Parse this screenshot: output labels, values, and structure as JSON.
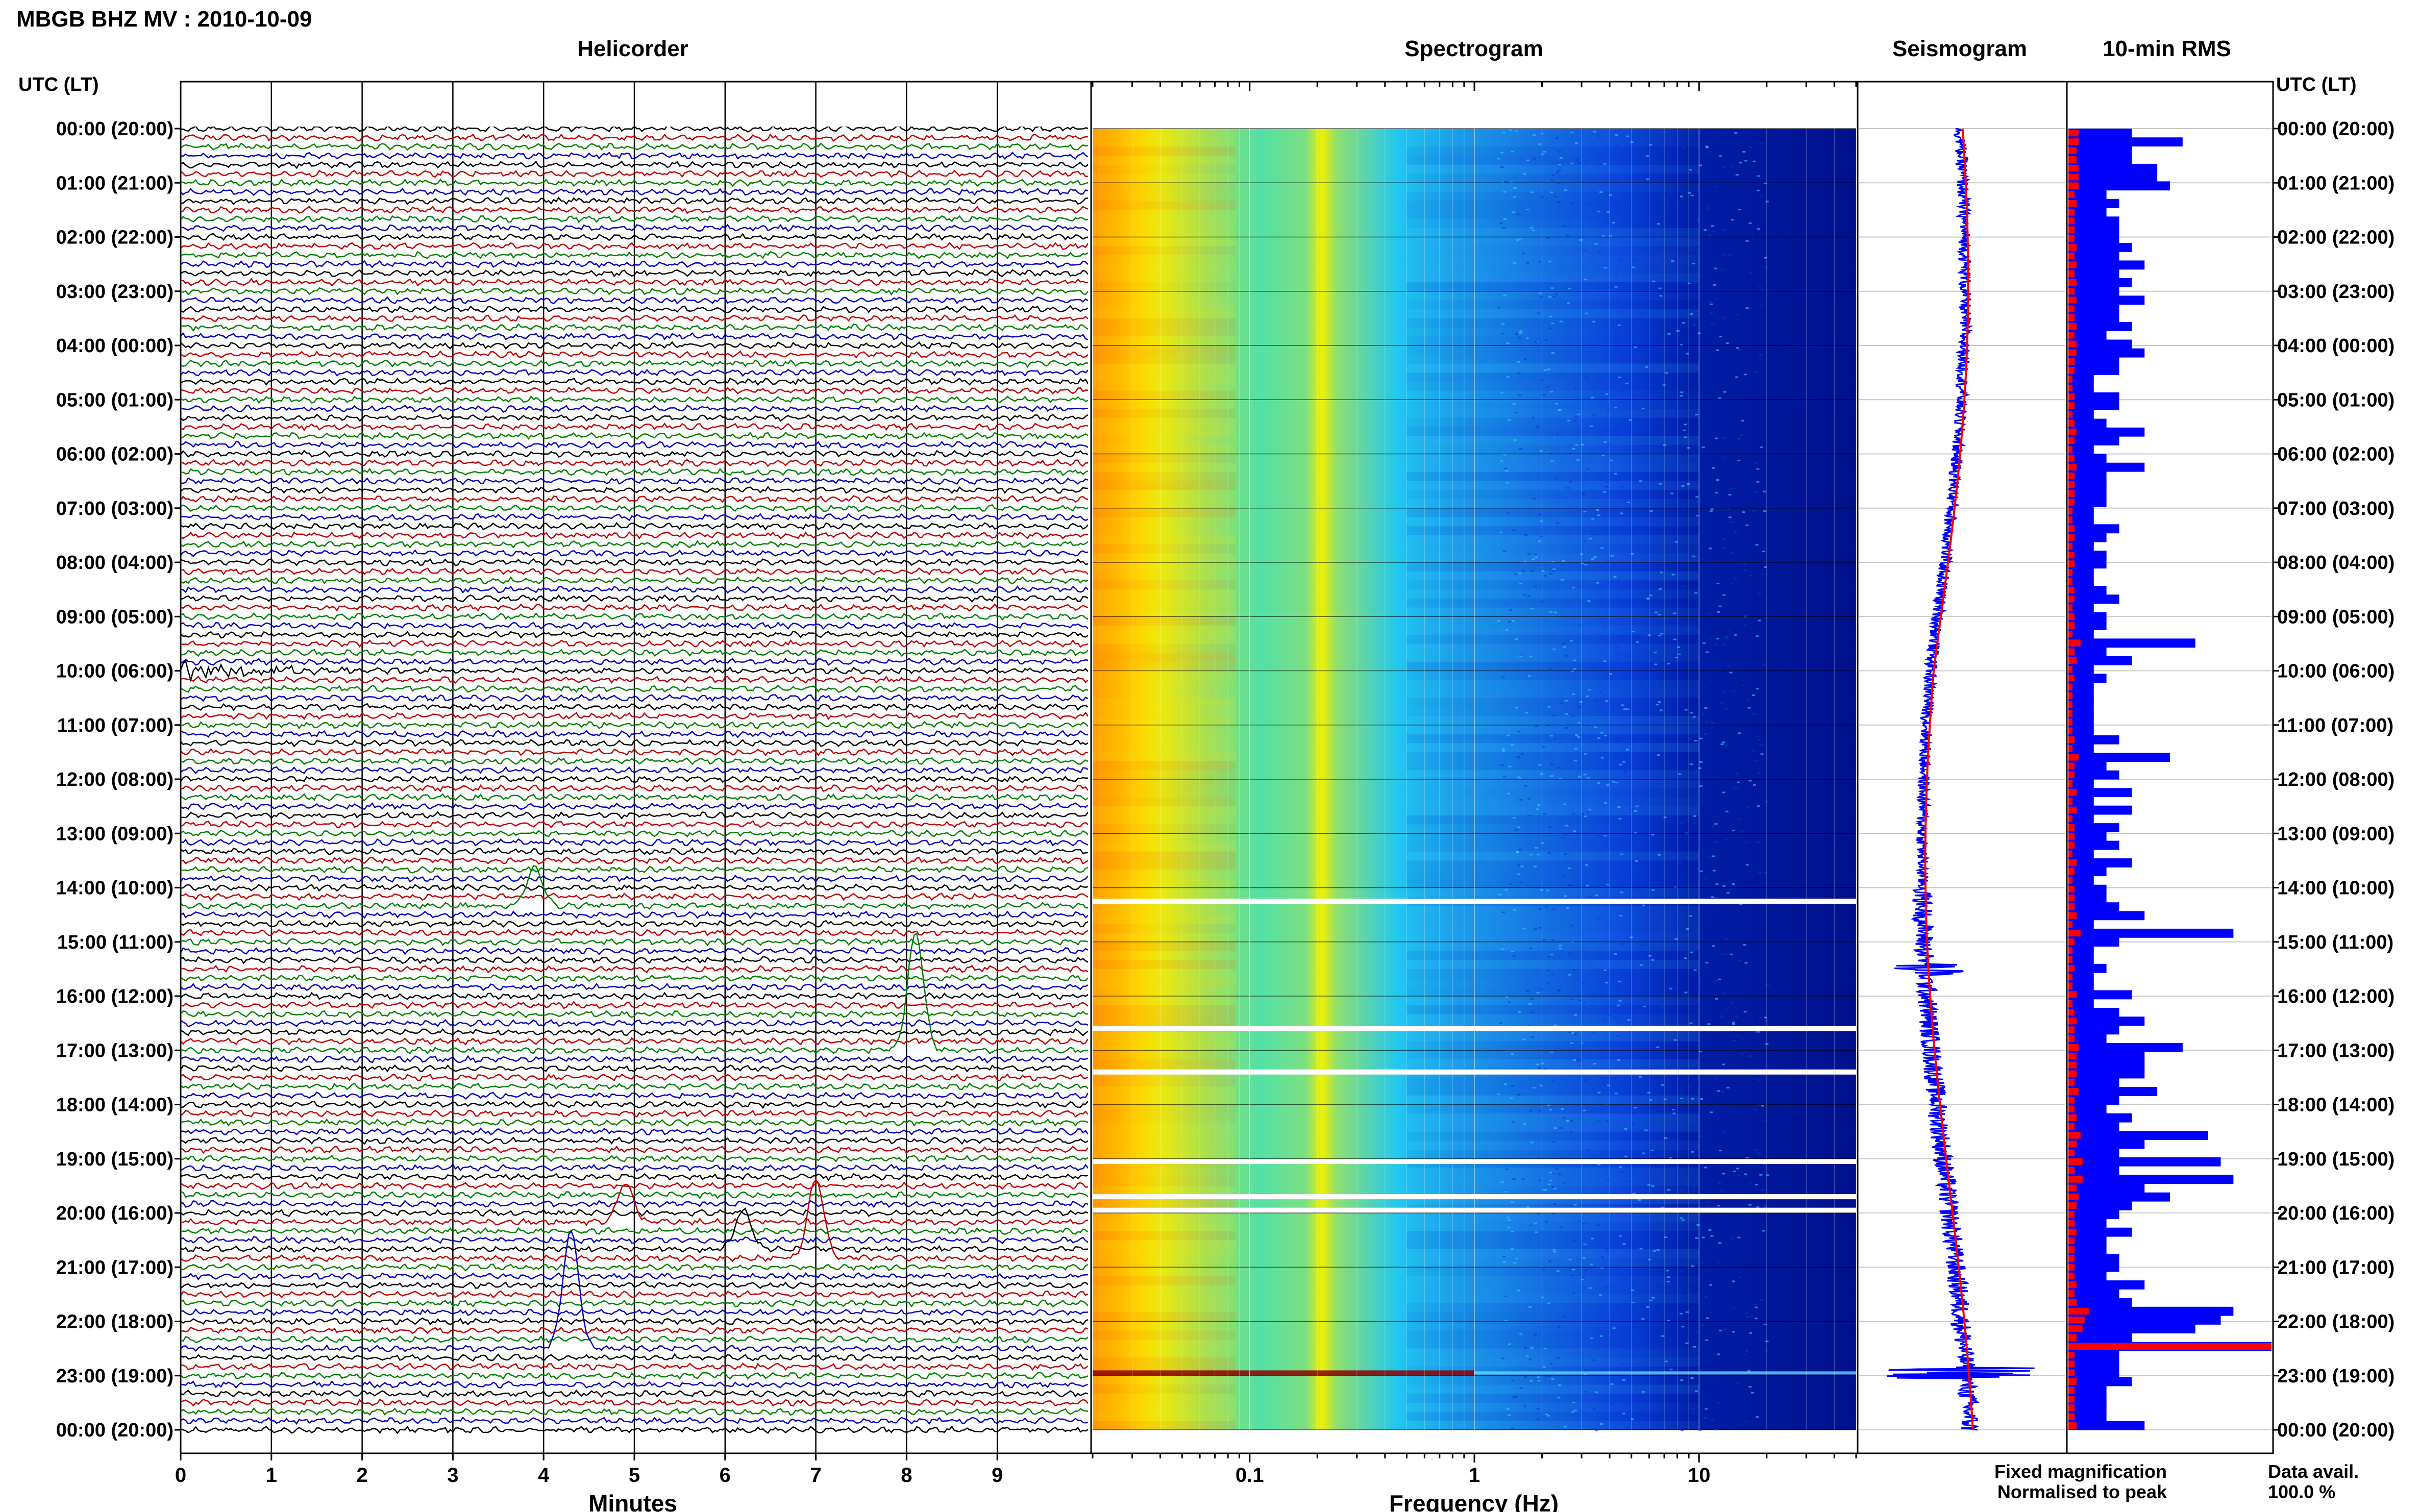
{
  "page_title": "MBGB BHZ MV : 2010-10-09",
  "panels": {
    "helicorder": "Helicorder",
    "spectrogram": "Spectrogram",
    "seismogram": "Seismogram",
    "rms": "10-min RMS"
  },
  "time_axis_header": "UTC (LT)",
  "time_labels": [
    "00:00 (20:00)",
    "01:00 (21:00)",
    "02:00 (22:00)",
    "03:00 (23:00)",
    "04:00 (00:00)",
    "05:00 (01:00)",
    "06:00 (02:00)",
    "07:00 (03:00)",
    "08:00 (04:00)",
    "09:00 (05:00)",
    "10:00 (06:00)",
    "11:00 (07:00)",
    "12:00 (08:00)",
    "13:00 (09:00)",
    "14:00 (10:00)",
    "15:00 (11:00)",
    "16:00 (12:00)",
    "17:00 (13:00)",
    "18:00 (14:00)",
    "19:00 (15:00)",
    "20:00 (16:00)",
    "21:00 (17:00)",
    "22:00 (18:00)",
    "23:00 (19:00)",
    "00:00 (20:00)"
  ],
  "legend": {
    "fixed": "Fixed magnification",
    "normalised": "Normalised to peak",
    "fixed_color": "#0000ff",
    "normalised_color": "#ff0000"
  },
  "data_avail_label": "Data avail.",
  "data_avail_value": "100.0 %",
  "chart_data": [
    {
      "type": "line",
      "name": "helicorder",
      "title": "Helicorder",
      "xlabel": "Minutes",
      "xticks": [
        0,
        1,
        2,
        3,
        4,
        5,
        6,
        7,
        8,
        9
      ],
      "xlim": [
        0,
        10
      ],
      "trace_colors": [
        "#000000",
        "#c00000",
        "#008000",
        "#0000c0"
      ],
      "events": [
        {
          "hour": 10.0,
          "minute": 0.0,
          "kind": "burst"
        },
        {
          "hour": 14.4,
          "minute": 3.9,
          "kind": "pulse"
        },
        {
          "hour": 17.0,
          "minute": 8.1,
          "kind": "pulse"
        },
        {
          "hour": 20.1,
          "minute": 4.9,
          "kind": "pulse"
        },
        {
          "hour": 20.6,
          "minute": 6.2,
          "kind": "pulse"
        },
        {
          "hour": 20.8,
          "minute": 7.0,
          "kind": "pulse"
        },
        {
          "hour": 22.5,
          "minute": 4.3,
          "kind": "pulse"
        }
      ]
    },
    {
      "type": "heatmap",
      "name": "spectrogram",
      "title": "Spectrogram",
      "xlabel": "Frequency (Hz)",
      "xscale": "log",
      "xlim": [
        0.02,
        50
      ],
      "xticks": [
        0.1,
        1,
        10
      ],
      "gap_hours": [
        14.25,
        16.6,
        17.4,
        19.05,
        19.7,
        19.95
      ],
      "hot_hour": 22.95
    },
    {
      "type": "line",
      "name": "seismogram",
      "title": "Seismogram",
      "xlim": [
        -1,
        1
      ]
    },
    {
      "type": "bar",
      "name": "rms",
      "title": "10-min RMS",
      "series": [
        {
          "name": "Fixed magnification",
          "color": "#0000ff",
          "values": [
            0.5,
            0.9,
            0.5,
            0.5,
            0.7,
            0.7,
            0.8,
            0.3,
            0.4,
            0.3,
            0.4,
            0.4,
            0.4,
            0.5,
            0.4,
            0.6,
            0.4,
            0.5,
            0.4,
            0.6,
            0.4,
            0.4,
            0.5,
            0.3,
            0.5,
            0.6,
            0.4,
            0.4,
            0.2,
            0.2,
            0.4,
            0.4,
            0.2,
            0.3,
            0.6,
            0.4,
            0.2,
            0.3,
            0.6,
            0.3,
            0.3,
            0.3,
            0.3,
            0.2,
            0.2,
            0.4,
            0.3,
            0.2,
            0.3,
            0.3,
            0.2,
            0.2,
            0.3,
            0.4,
            0.2,
            0.3,
            0.3,
            0.2,
            1.0,
            0.3,
            0.5,
            0.2,
            0.3,
            0.2,
            0.2,
            0.2,
            0.2,
            0.2,
            0.2,
            0.4,
            0.2,
            0.8,
            0.3,
            0.4,
            0.2,
            0.5,
            0.2,
            0.5,
            0.2,
            0.4,
            0.3,
            0.4,
            0.2,
            0.5,
            0.3,
            0.2,
            0.3,
            0.3,
            0.4,
            0.6,
            0.2,
            1.3,
            0.4,
            0.2,
            0.2,
            0.3,
            0.2,
            0.2,
            0.5,
            0.2,
            0.4,
            0.6,
            0.4,
            0.3,
            0.9,
            0.6,
            0.6,
            0.6,
            0.4,
            0.7,
            0.4,
            0.3,
            0.5,
            0.4,
            1.1,
            0.6,
            0.4,
            1.2,
            0.4,
            1.3,
            0.6,
            0.8,
            0.5,
            0.4,
            0.3,
            0.5,
            0.3,
            0.3,
            0.4,
            0.4,
            0.3,
            0.6,
            0.4,
            0.5,
            1.3,
            1.2,
            1.0,
            0.5,
            1.6,
            0.4,
            0.4,
            0.4,
            0.5,
            0.3,
            0.3,
            0.3,
            0.3,
            0.6
          ]
        },
        {
          "name": "Normalised to peak",
          "color": "#ff0000",
          "values": [
            0.05,
            0.05,
            0.04,
            0.04,
            0.05,
            0.05,
            0.05,
            0.03,
            0.04,
            0.03,
            0.03,
            0.03,
            0.03,
            0.04,
            0.03,
            0.04,
            0.03,
            0.04,
            0.03,
            0.04,
            0.03,
            0.03,
            0.04,
            0.03,
            0.04,
            0.04,
            0.03,
            0.03,
            0.02,
            0.02,
            0.03,
            0.03,
            0.02,
            0.03,
            0.04,
            0.03,
            0.02,
            0.03,
            0.04,
            0.03,
            0.03,
            0.03,
            0.03,
            0.02,
            0.02,
            0.03,
            0.03,
            0.02,
            0.03,
            0.03,
            0.02,
            0.02,
            0.03,
            0.03,
            0.02,
            0.03,
            0.03,
            0.02,
            0.06,
            0.03,
            0.04,
            0.02,
            0.03,
            0.02,
            0.02,
            0.02,
            0.02,
            0.02,
            0.02,
            0.03,
            0.02,
            0.05,
            0.03,
            0.03,
            0.02,
            0.04,
            0.02,
            0.04,
            0.02,
            0.03,
            0.03,
            0.03,
            0.02,
            0.04,
            0.03,
            0.02,
            0.03,
            0.03,
            0.03,
            0.04,
            0.02,
            0.06,
            0.03,
            0.02,
            0.02,
            0.03,
            0.02,
            0.02,
            0.04,
            0.02,
            0.03,
            0.04,
            0.03,
            0.03,
            0.05,
            0.04,
            0.04,
            0.04,
            0.03,
            0.05,
            0.03,
            0.03,
            0.04,
            0.03,
            0.06,
            0.04,
            0.03,
            0.07,
            0.03,
            0.07,
            0.04,
            0.05,
            0.04,
            0.03,
            0.03,
            0.04,
            0.03,
            0.03,
            0.03,
            0.03,
            0.03,
            0.04,
            0.03,
            0.04,
            0.1,
            0.08,
            0.07,
            0.04,
            1.0,
            0.03,
            0.03,
            0.03,
            0.04,
            0.03,
            0.03,
            0.03,
            0.03,
            0.04
          ]
        }
      ]
    }
  ]
}
